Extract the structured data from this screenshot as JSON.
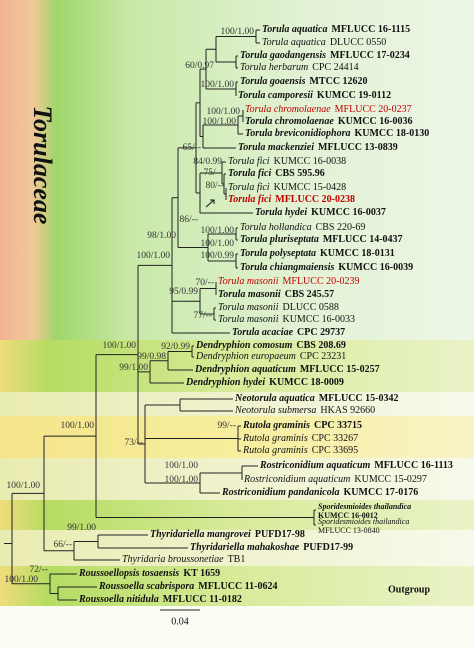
{
  "title": "Torulaceae",
  "outgroup_label": "Outgroup",
  "scale": "0.04",
  "taxa": [
    {
      "name": "Torula aquatica",
      "strain": "MFLUCC 16-1115",
      "bold": true
    },
    {
      "name": "Torula aquatica",
      "strain": "DLUCC 0550",
      "bold": false
    },
    {
      "name": "Torula gaodangensis",
      "strain": "MFLUCC 17-0234",
      "bold": true
    },
    {
      "name": "Torula herbarum",
      "strain": "CPC 24414",
      "bold": false
    },
    {
      "name": "Torula goaensis",
      "strain": "MTCC 12620",
      "bold": true
    },
    {
      "name": "Torula camporesii",
      "strain": "KUMCC 19-0112",
      "bold": true
    },
    {
      "name": "Torula chromolaenae",
      "strain": "MFLUCC 20-0237",
      "bold": false,
      "color": "#c00000"
    },
    {
      "name": "Torula chromolaenae",
      "strain": "KUMCC 16-0036",
      "bold": true
    },
    {
      "name": "Torula breviconidiophora",
      "strain": "KUMCC 18-0130",
      "bold": true
    },
    {
      "name": "Torula mackenziei",
      "strain": "MFLUCC 13-0839",
      "bold": true
    },
    {
      "name": "Torula fici",
      "strain": "KUMCC 16-0038",
      "bold": false
    },
    {
      "name": "Torula fici",
      "strain": "CBS 595.96",
      "bold": true
    },
    {
      "name": "Torula fici",
      "strain": "KUMCC 15-0428",
      "bold": false
    },
    {
      "name": "Torula fici",
      "strain": "MFLUCC 20-0238",
      "bold": true,
      "color": "#c00000"
    },
    {
      "name": "Torula hydei",
      "strain": "KUMCC 16-0037",
      "bold": true
    },
    {
      "name": "Torula hollandica",
      "strain": "CBS 220-69",
      "bold": false
    },
    {
      "name": "Torula pluriseptata",
      "strain": "MFLUCC 14-0437",
      "bold": true
    },
    {
      "name": "Torula polyseptata",
      "strain": "KUMCC 18-0131",
      "bold": true
    },
    {
      "name": "Torula chiangmaiensis",
      "strain": "KUMCC 16-0039",
      "bold": true
    },
    {
      "name": "Torula masonii",
      "strain": "MFLUCC 20-0239",
      "bold": false,
      "color": "#c00000"
    },
    {
      "name": "Torula masonii",
      "strain": "CBS 245.57",
      "bold": true
    },
    {
      "name": "Torula masonii",
      "strain": "DLUCC 0588",
      "bold": false
    },
    {
      "name": "Torula masonii",
      "strain": "KUMCC 16-0033",
      "bold": false
    },
    {
      "name": "Torula acaciae",
      "strain": "CPC 29737",
      "bold": true
    },
    {
      "name": "Dendryphion comosum",
      "strain": "CBS 208.69",
      "bold": true
    },
    {
      "name": "Dendryphion europaeum",
      "strain": "CPC 23231",
      "bold": false
    },
    {
      "name": "Dendryphion aquaticum",
      "strain": "MFLUCC 15-0257",
      "bold": true
    },
    {
      "name": "Dendryphion hydei",
      "strain": "KUMCC 18-0009",
      "bold": true
    },
    {
      "name": "Neotorula aquatica",
      "strain": "MFLUCC 15-0342",
      "bold": true
    },
    {
      "name": "Neotorula submersa",
      "strain": "HKAS 92660",
      "bold": false
    },
    {
      "name": "Rutola graminis",
      "strain": "CPC 33715",
      "bold": true
    },
    {
      "name": "Rutola graminis",
      "strain": "CPC 33267",
      "bold": false
    },
    {
      "name": "Rutola graminis",
      "strain": "CPC 33695",
      "bold": false
    },
    {
      "name": "Rostriconidium aquaticum",
      "strain": "MFLUCC 16-1113",
      "bold": true
    },
    {
      "name": "Rostriconidium aquaticum",
      "strain": "KUMCC 15-0297",
      "bold": false
    },
    {
      "name": "Rostriconidium pandanicola",
      "strain": "KUMCC 17-0176",
      "bold": true
    },
    {
      "name": "Sporidesmioides thailandica",
      "strain": "KUMCC 16-0012",
      "bold": true
    },
    {
      "name": "Sporidesmioides thailandica",
      "strain": "MFLUCC 13-0840",
      "bold": false
    },
    {
      "name": "Thyridariella mangrovei",
      "strain": "PUFD17-98",
      "bold": true
    },
    {
      "name": "Thyridariella mahakoshae",
      "strain": "PUFD17-99",
      "bold": true
    },
    {
      "name": "Thyridaria broussonetiae",
      "strain": "TB1",
      "bold": false
    },
    {
      "name": "Roussoellopsis tosaensis",
      "strain": "KT 1659",
      "bold": true
    },
    {
      "name": "Roussoella scabrispora",
      "strain": "MFLUCC 11-0624",
      "bold": true
    },
    {
      "name": "Roussoella nitidula",
      "strain": "MFLUCC 11-0182",
      "bold": true
    }
  ],
  "supports": [
    "100/1.00",
    "60/0.97",
    "100/1.00",
    "100/1.00",
    "100/1.00",
    "65/--",
    "84/0.99",
    "75/--",
    "80/--",
    "86/--",
    "98/1.00",
    "100/1.00",
    "100/1.00",
    "100/0.99",
    "100/1.00",
    "70/--",
    "95/0.99",
    "77/--",
    "100/1.00",
    "92/0.99",
    "99/0.98",
    "99/1.00",
    "100/1.00",
    "99/--",
    "73/--",
    "100/1.00",
    "100/1.00",
    "100/1.00",
    "99/1.00",
    "66/--",
    "72/--",
    "100/1.00"
  ]
}
